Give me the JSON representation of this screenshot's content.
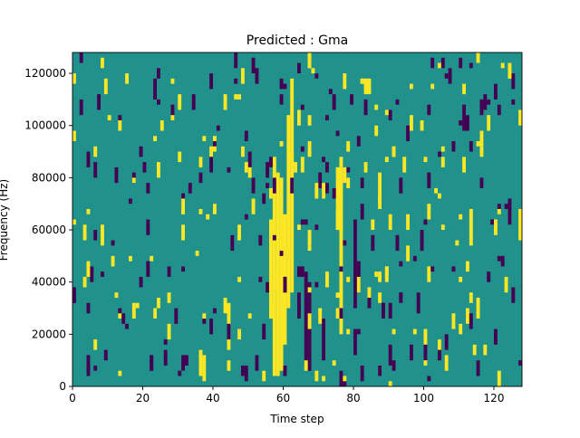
{
  "chart_data": {
    "type": "heatmap",
    "title": "Predicted : Gma",
    "xlabel": "Time step",
    "ylabel": "Frequency (Hz)",
    "xlim": [
      0,
      128
    ],
    "ylim": [
      0,
      128000
    ],
    "x_ticks": [
      "0",
      "20",
      "40",
      "60",
      "80",
      "100",
      "120"
    ],
    "y_ticks": [
      "0",
      "20000",
      "40000",
      "60000",
      "80000",
      "100000",
      "120000"
    ],
    "legend": "none",
    "grid": false,
    "colors": {
      "background": "#21918c",
      "low": "#440154",
      "high": "#fde725"
    },
    "values_description_levels": [
      "low",
      "background",
      "high"
    ],
    "cells": [
      {
        "x": 57,
        "y0": 4000,
        "y1": 88000,
        "level": "high"
      },
      {
        "x": 58,
        "y0": 4000,
        "y1": 82000,
        "level": "high"
      },
      {
        "x": 59,
        "y0": 6000,
        "y1": 80000,
        "level": "high"
      },
      {
        "x": 60,
        "y0": 16000,
        "y1": 66000,
        "level": "high"
      },
      {
        "x": 61,
        "y0": 30000,
        "y1": 104000,
        "level": "high"
      },
      {
        "x": 62,
        "y0": 36000,
        "y1": 118000,
        "level": "high"
      },
      {
        "x": 56,
        "y0": 26000,
        "y1": 64000,
        "level": "high"
      },
      {
        "x": 66,
        "y0": 8000,
        "y1": 44000,
        "level": "low"
      },
      {
        "x": 67,
        "y0": 6000,
        "y1": 40000,
        "level": "low"
      },
      {
        "x": 71,
        "y0": 10000,
        "y1": 26000,
        "level": "low"
      },
      {
        "x": 76,
        "y0": 20000,
        "y1": 84000,
        "level": "high"
      },
      {
        "x": 75,
        "y0": 60000,
        "y1": 84000,
        "level": "high"
      },
      {
        "x": 80,
        "y0": 30000,
        "y1": 64000,
        "level": "low"
      },
      {
        "x": 81,
        "y0": 36000,
        "y1": 48000,
        "level": "low"
      },
      {
        "x": 44,
        "y0": 14000,
        "y1": 32000,
        "level": "high"
      },
      {
        "x": 36,
        "y0": 4000,
        "y1": 14000,
        "level": "high"
      },
      {
        "x": 37,
        "y0": 2000,
        "y1": 12000,
        "level": "high"
      },
      {
        "x": 24,
        "y0": 30000,
        "y1": 34000,
        "level": "high"
      },
      {
        "x": 17,
        "y0": 26000,
        "y1": 32000,
        "level": "high"
      },
      {
        "x": 115,
        "y0": 26000,
        "y1": 34000,
        "level": "high"
      },
      {
        "x": 4,
        "y0": 6000,
        "y1": 12000,
        "level": "low"
      },
      {
        "x": 31,
        "y0": 6000,
        "y1": 12000,
        "level": "low"
      },
      {
        "x": 80,
        "y0": 12000,
        "y1": 22000,
        "level": "low"
      },
      {
        "x": 90,
        "y0": 8000,
        "y1": 16000,
        "level": "low"
      },
      {
        "x": 98,
        "y0": 28000,
        "y1": 36000,
        "level": "low"
      },
      {
        "x": 124,
        "y0": 62000,
        "y1": 72000,
        "level": "low"
      },
      {
        "x": 32,
        "y0": 8000,
        "y1": 12000,
        "level": "low"
      },
      {
        "x": 23,
        "y0": 110000,
        "y1": 118000,
        "level": "low"
      },
      {
        "x": 127,
        "y0": 56000,
        "y1": 68000,
        "level": "high"
      },
      {
        "x": 113,
        "y0": 54000,
        "y1": 68000,
        "level": "high"
      },
      {
        "x": 99,
        "y0": 52000,
        "y1": 60000,
        "level": "low"
      },
      {
        "x": 92,
        "y0": 52000,
        "y1": 58000,
        "level": "low"
      },
      {
        "x": 87,
        "y0": 70000,
        "y1": 82000,
        "level": "high"
      },
      {
        "x": 111,
        "y0": 98000,
        "y1": 108000,
        "level": "low"
      },
      {
        "x": 115,
        "y0": 124000,
        "y1": 128000,
        "level": "high"
      },
      {
        "x": 2,
        "y0": 124000,
        "y1": 128000,
        "level": "low"
      }
    ]
  }
}
